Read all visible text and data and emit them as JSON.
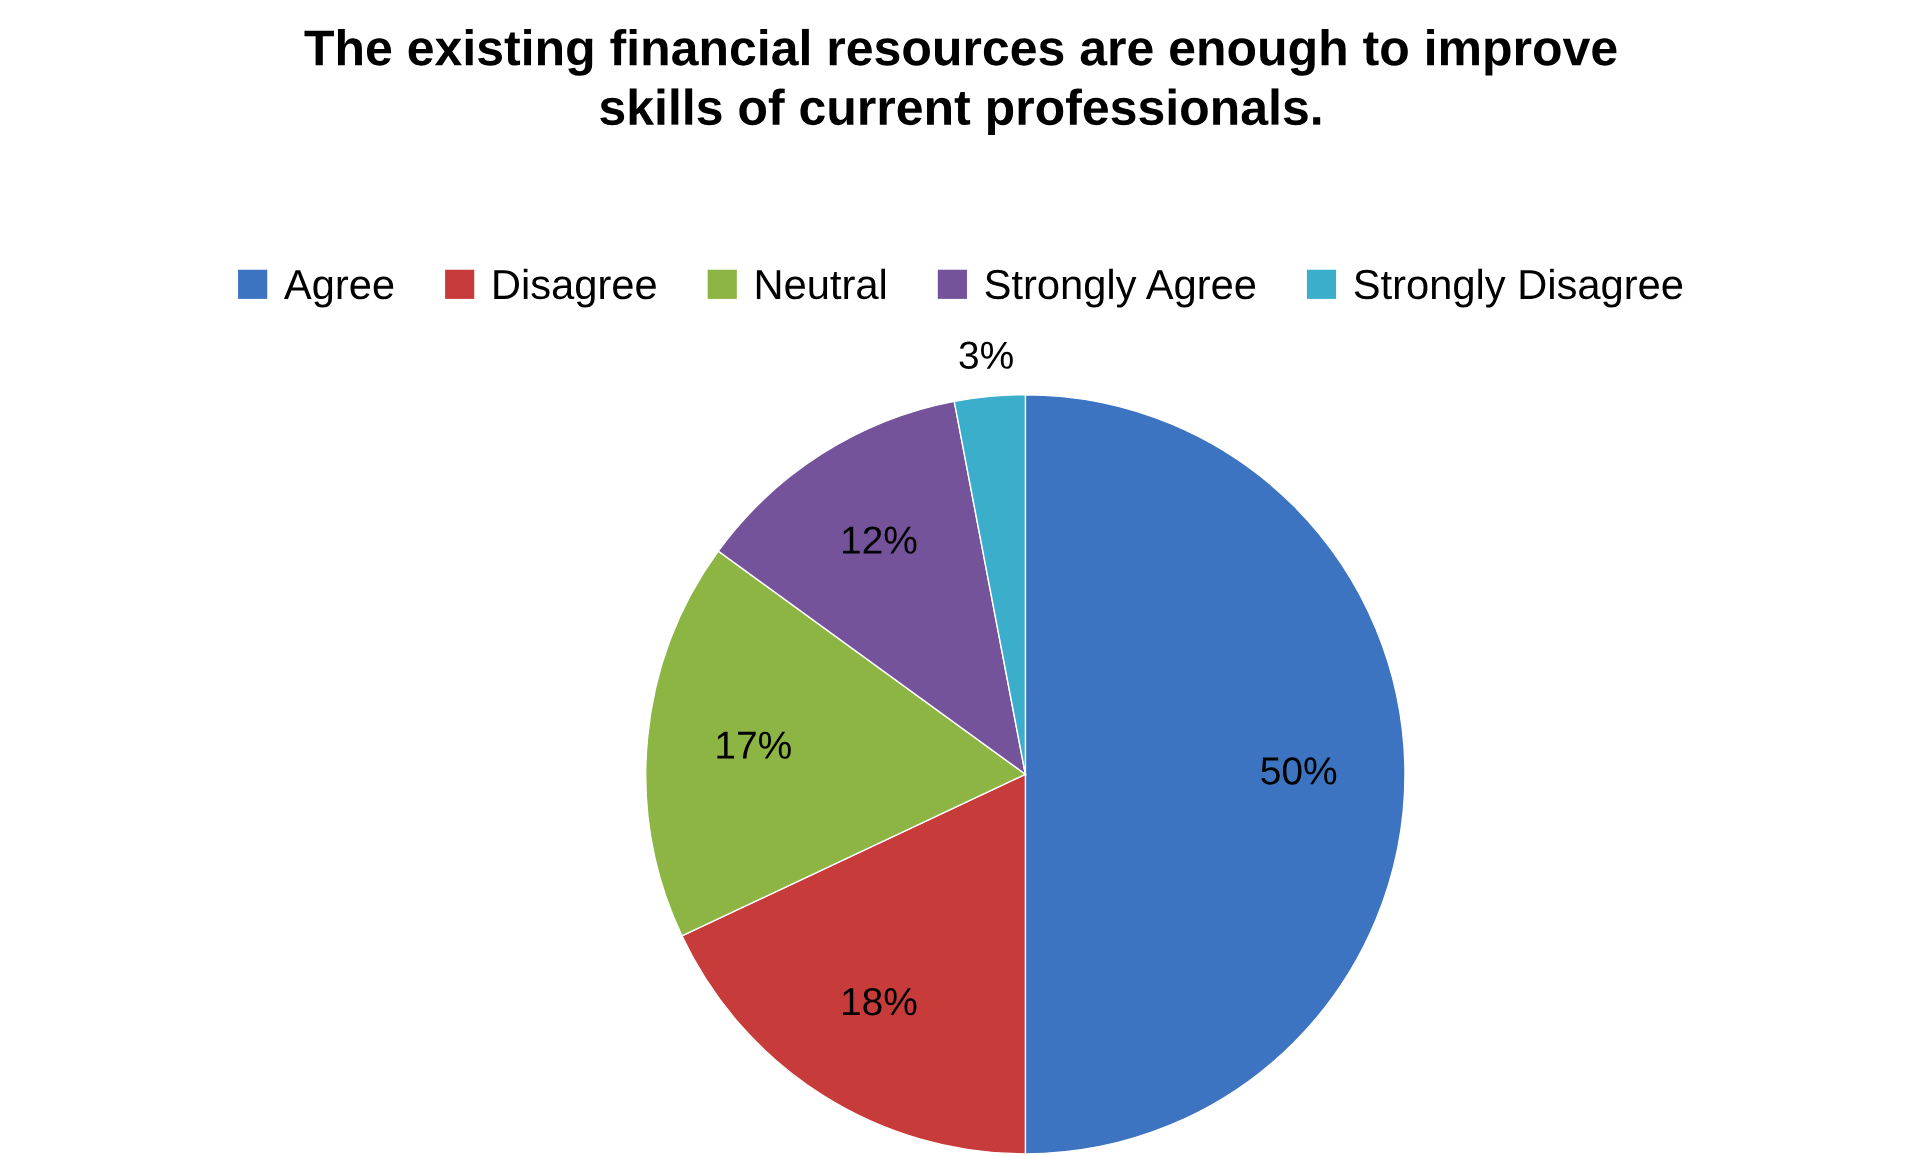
{
  "chart_data": {
    "type": "pie",
    "title": "The existing financial resources are enough to improve\nskills of current professionals.",
    "categories": [
      "Agree",
      "Disagree",
      "Neutral",
      "Strongly Agree",
      "Strongly Disagree"
    ],
    "values": [
      50,
      18,
      17,
      12,
      3
    ],
    "value_labels": [
      "50%",
      "18%",
      "17%",
      "12%",
      "3%"
    ],
    "colors": [
      "#3d74c2",
      "#c73c3a",
      "#8db543",
      "#74539b",
      "#3aaecb"
    ],
    "legend": "top"
  }
}
